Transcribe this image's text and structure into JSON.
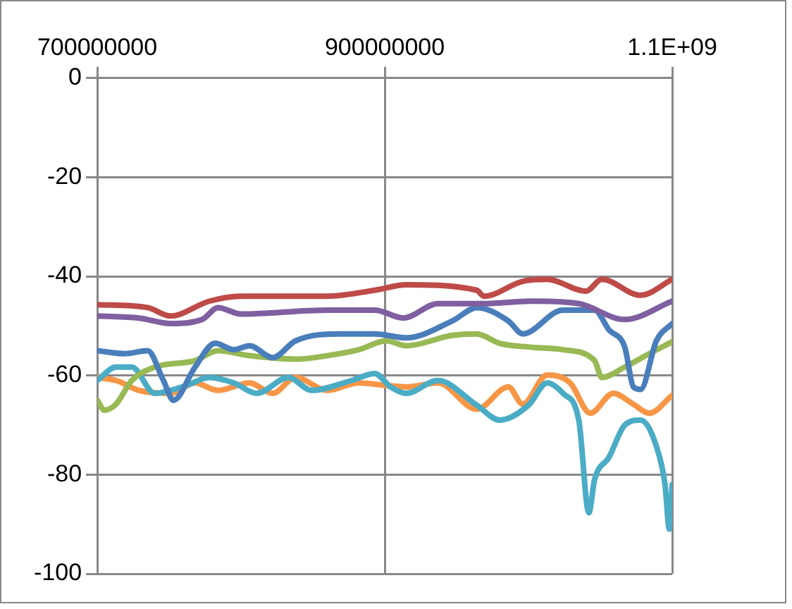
{
  "chart_data": {
    "type": "line",
    "xlim": [
      700000000,
      1100000000
    ],
    "xticks": [
      700000000,
      900000000,
      {
        "value": 1100000000,
        "label": "1.1E+09"
      }
    ],
    "ylim": [
      -100,
      0
    ],
    "yticks": [
      -100,
      -80,
      -60,
      -40,
      -20,
      0
    ],
    "grid": true,
    "legend": false,
    "marker": "none",
    "line_style": "solid",
    "series": [
      {
        "color": "#be4b48",
        "x": [
          700000000,
          735000000,
          751000000,
          778000000,
          800000000,
          860000000,
          893000000,
          915000000,
          964000000,
          969000000,
          996000000,
          1013000000,
          1040000000,
          1051000000,
          1078000000,
          1100000000
        ],
        "values": [
          -45.7,
          -46.3,
          -48,
          -45,
          -44,
          -44,
          -42.8,
          -41.7,
          -42.8,
          -44,
          -41,
          -40.6,
          -43,
          -40.6,
          -43.8,
          -40.6
        ]
      },
      {
        "color": "#7f5fa0",
        "x": [
          700000000,
          729000000,
          751000000,
          773000000,
          784000000,
          800000000,
          860000000,
          893000000,
          913000000,
          937000000,
          969000000,
          1002000000,
          1035000000,
          1067000000,
          1100000000
        ],
        "values": [
          -48,
          -48.4,
          -49.5,
          -48.7,
          -46.3,
          -47.6,
          -46.8,
          -46.8,
          -48.4,
          -45.5,
          -45.5,
          -45,
          -45.5,
          -48.7,
          -45
        ]
      },
      {
        "color": "#4a7ebb",
        "x": [
          700000000,
          719000000,
          735000000,
          746000000,
          753000000,
          768000000,
          782000000,
          795000000,
          806000000,
          822000000,
          838000000,
          871000000,
          893000000,
          915000000,
          947000000,
          964000000,
          986000000,
          996000000,
          1024000000,
          1046000000,
          1056000000,
          1067000000,
          1073000000,
          1078000000,
          1089000000,
          1100000000
        ],
        "values": [
          -55,
          -55.6,
          -55,
          -61,
          -65,
          -58.3,
          -53.5,
          -54.8,
          -54,
          -56.4,
          -53,
          -51.6,
          -51.6,
          -52.4,
          -49,
          -46.3,
          -49,
          -51.6,
          -46.8,
          -46.8,
          -50.8,
          -54.3,
          -62.3,
          -62.8,
          -53,
          -49.5
        ]
      },
      {
        "color": "#98b954",
        "x": [
          700000000,
          705000000,
          713000000,
          724000000,
          740000000,
          768000000,
          784000000,
          806000000,
          838000000,
          860000000,
          882000000,
          901000000,
          915000000,
          947000000,
          964000000,
          980000000,
          1002000000,
          1024000000,
          1046000000,
          1051000000,
          1067000000,
          1084000000,
          1100000000
        ],
        "values": [
          -65,
          -67,
          -65.8,
          -61,
          -58.3,
          -57,
          -55,
          -56,
          -56.7,
          -56,
          -54.8,
          -53,
          -54,
          -51.9,
          -51.6,
          -53.5,
          -54.3,
          -54.8,
          -57,
          -60.4,
          -58.3,
          -55.6,
          -53.2
        ]
      },
      {
        "color": "#4bacc6",
        "x": [
          700000000,
          713000000,
          724000000,
          740000000,
          751000000,
          762000000,
          778000000,
          795000000,
          811000000,
          833000000,
          849000000,
          877000000,
          893000000,
          904000000,
          915000000,
          937000000,
          964000000,
          980000000,
          1000000000,
          1013000000,
          1024000000,
          1035000000,
          1042000000,
          1046000000,
          1056000000,
          1067000000,
          1078000000,
          1089000000,
          1095000000,
          1098000000,
          1100000000
        ],
        "values": [
          -61,
          -58.3,
          -58.3,
          -63.6,
          -63,
          -62,
          -60.4,
          -61.5,
          -63.6,
          -60.4,
          -63,
          -61,
          -59.6,
          -62.3,
          -63.6,
          -61,
          -66,
          -69,
          -66,
          -61.5,
          -63.6,
          -69,
          -87.7,
          -81,
          -76.5,
          -70,
          -69,
          -74.3,
          -82,
          -91,
          -82
        ]
      },
      {
        "color": "#f79646",
        "x": [
          700000000,
          713000000,
          729000000,
          751000000,
          768000000,
          784000000,
          806000000,
          822000000,
          838000000,
          860000000,
          882000000,
          901000000,
          915000000,
          937000000,
          964000000,
          986000000,
          996000000,
          1013000000,
          1029000000,
          1043000000,
          1059000000,
          1073000000,
          1084000000,
          1100000000
        ],
        "values": [
          -60.4,
          -61,
          -63,
          -63.6,
          -61.5,
          -63,
          -61.5,
          -63.6,
          -60.4,
          -63,
          -61.5,
          -62,
          -62.3,
          -61.5,
          -66.8,
          -62.3,
          -65.8,
          -59.9,
          -61.5,
          -67.6,
          -63.6,
          -65.8,
          -67.6,
          -64
        ]
      }
    ]
  }
}
